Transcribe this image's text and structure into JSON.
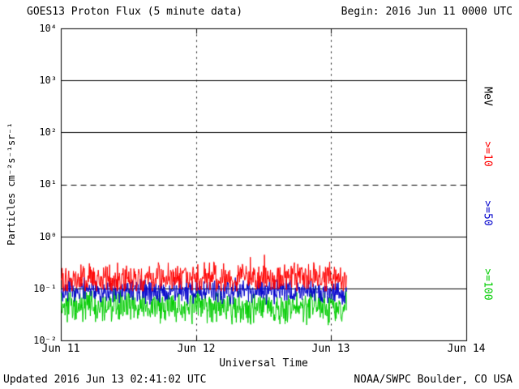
{
  "header": {
    "title": "GOES13 Proton Flux (5 minute data)",
    "begin_label": "Begin: 2016 Jun 11 0000 UTC"
  },
  "footer": {
    "updated_label": "Updated 2016 Jun 13 02:41:02 UTC",
    "source_label": "NOAA/SWPC Boulder, CO USA"
  },
  "chart_data": {
    "type": "line",
    "title": "GOES13 Proton Flux (5 minute data)",
    "xlabel": "Universal Time",
    "ylabel": "Particles cm⁻²s⁻¹sr⁻¹",
    "right_axis_unit": "MeV",
    "x_axis": {
      "start": "2016 Jun 11 0000 UTC",
      "end": "2016 Jun 14 0000 UTC",
      "tick_labels": [
        "Jun 11",
        "Jun 12",
        "Jun 13",
        "Jun 14"
      ],
      "tick_days": [
        0,
        1,
        2,
        3
      ],
      "span_days": 3,
      "dotted_gridline_days": [
        1,
        2
      ]
    },
    "y_axis": {
      "scale": "log10",
      "min": 0.01,
      "max": 10000,
      "tick_labels": [
        "10⁴",
        "10³",
        "10²",
        "10¹",
        "10⁰",
        "10⁻¹",
        "10⁻²"
      ],
      "tick_exponents": [
        4,
        3,
        2,
        1,
        0,
        -1,
        -2
      ],
      "solid_gridline_levels": [
        1000,
        100,
        1,
        0.1
      ],
      "dashed_gridline_levels": [
        10
      ]
    },
    "series": [
      {
        "name": ">=10 MeV proton flux",
        "label": ">=10",
        "color": "#ff0000",
        "start_day": 0,
        "end_day": 2.112,
        "interval_minutes": 5,
        "baseline_flux": 0.16,
        "flux_min": 0.09,
        "flux_max": 0.45,
        "noise_half_range_decades": 0.35,
        "seed": 101
      },
      {
        "name": ">=50 MeV proton flux",
        "label": ">=50",
        "color": "#0000cc",
        "start_day": 0,
        "end_day": 2.112,
        "interval_minutes": 5,
        "baseline_flux": 0.09,
        "flux_min": 0.05,
        "flux_max": 0.18,
        "noise_half_range_decades": 0.28,
        "seed": 202
      },
      {
        "name": ">=100 MeV proton flux",
        "label": ">=100",
        "color": "#00cc00",
        "start_day": 0,
        "end_day": 2.112,
        "interval_minutes": 5,
        "baseline_flux": 0.045,
        "flux_min": 0.02,
        "flux_max": 0.11,
        "noise_half_range_decades": 0.37,
        "seed": 303
      }
    ],
    "legend_position": "right",
    "grid": true
  }
}
